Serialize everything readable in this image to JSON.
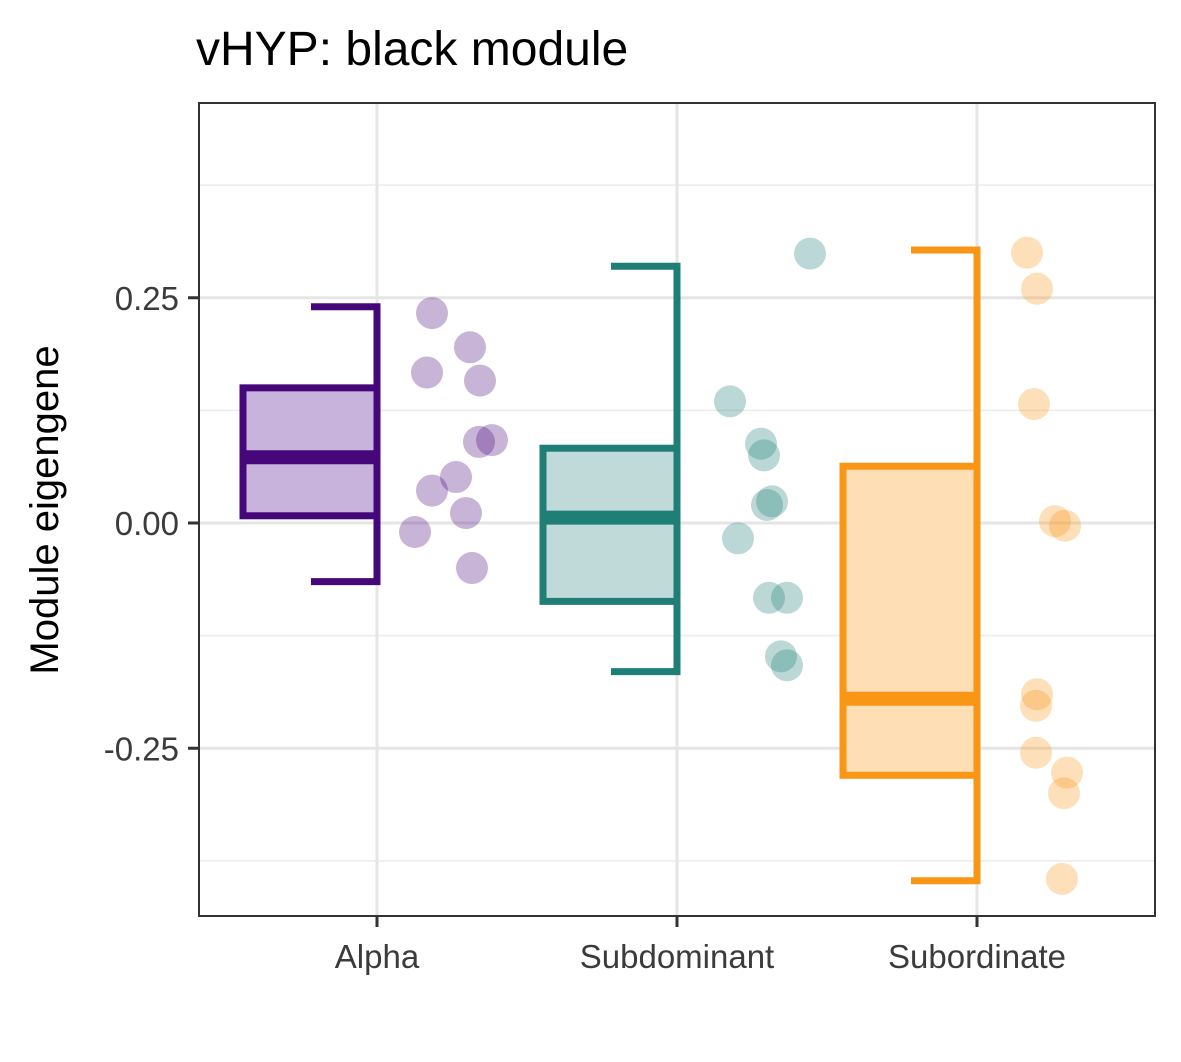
{
  "chart_data": {
    "type": "box",
    "title": "vHYP: black module",
    "xlabel": "",
    "ylabel": "Module eigengene",
    "ylim": [
      -0.435,
      0.47
    ],
    "yticks": [
      {
        "value": 0.25,
        "label": "0.25"
      },
      {
        "value": 0.0,
        "label": "0.00"
      },
      {
        "value": -0.25,
        "label": "-0.25"
      }
    ],
    "minor_gridlines": [
      0.375,
      0.125,
      -0.125,
      -0.375
    ],
    "grid": true,
    "legend": "none",
    "categories": [
      "Alpha",
      "Subdominant",
      "Subordinate"
    ],
    "groups": [
      {
        "name": "Alpha",
        "color": "#46077A",
        "fill": "#C8B3DC",
        "box": {
          "whisker_low": -0.065,
          "q1": 0.008,
          "median": 0.073,
          "q3": 0.15,
          "whisker_high": 0.24
        },
        "points": [
          0.233,
          0.195,
          0.167,
          0.158,
          0.092,
          0.09,
          0.051,
          0.036,
          0.011,
          -0.01,
          -0.05
        ]
      },
      {
        "name": "Subdominant",
        "color": "#1F7F77",
        "fill": "#BFDAD8",
        "box": {
          "whisker_low": -0.165,
          "q1": -0.087,
          "median": 0.006,
          "q3": 0.083,
          "whisker_high": 0.285
        },
        "points": [
          0.299,
          0.135,
          0.088,
          0.075,
          0.024,
          0.02,
          -0.017,
          -0.083,
          -0.083,
          -0.148,
          -0.158
        ]
      },
      {
        "name": "Subordinate",
        "color": "#FA9616",
        "fill": "#FEDFB5",
        "box": {
          "whisker_low": -0.397,
          "q1": -0.28,
          "median": -0.195,
          "q3": 0.063,
          "whisker_high": 0.303
        },
        "points": [
          0.3,
          0.26,
          0.132,
          0.002,
          -0.003,
          -0.19,
          -0.203,
          -0.255,
          -0.277,
          -0.3,
          -0.395
        ]
      }
    ]
  }
}
